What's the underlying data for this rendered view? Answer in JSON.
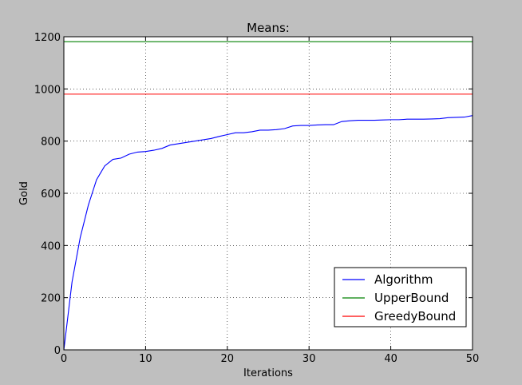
{
  "chart_data": {
    "type": "line",
    "title": "Means:",
    "xlabel": "Iterations",
    "ylabel": "Gold",
    "xlim": [
      0,
      50
    ],
    "ylim": [
      0,
      1200
    ],
    "xticks": [
      0,
      10,
      20,
      30,
      40,
      50
    ],
    "yticks": [
      0,
      200,
      400,
      600,
      800,
      1000,
      1200
    ],
    "grid": true,
    "legend_position": "lower-right",
    "series": [
      {
        "name": "Algorithm",
        "color": "#0000ff",
        "x": [
          0,
          1,
          2,
          3,
          4,
          5,
          6,
          7,
          8,
          9,
          10,
          11,
          12,
          13,
          14,
          15,
          16,
          17,
          18,
          19,
          20,
          21,
          22,
          23,
          24,
          25,
          26,
          27,
          28,
          29,
          30,
          31,
          32,
          33,
          34,
          35,
          36,
          37,
          38,
          39,
          40,
          41,
          42,
          43,
          44,
          45,
          46,
          47,
          48,
          49,
          50
        ],
        "y": [
          0,
          260,
          430,
          555,
          652,
          705,
          730,
          735,
          750,
          758,
          760,
          765,
          772,
          785,
          790,
          795,
          800,
          805,
          810,
          818,
          825,
          832,
          832,
          836,
          842,
          842,
          844,
          848,
          858,
          860,
          860,
          862,
          863,
          863,
          875,
          878,
          880,
          880,
          880,
          881,
          882,
          882,
          884,
          884,
          884,
          885,
          886,
          890,
          891,
          892,
          898
        ]
      },
      {
        "name": "UpperBound",
        "color": "#008000",
        "x": [
          0,
          50
        ],
        "y": [
          1181,
          1181
        ]
      },
      {
        "name": "GreedyBound",
        "color": "#ff0000",
        "x": [
          0,
          50
        ],
        "y": [
          980,
          980
        ]
      }
    ]
  }
}
